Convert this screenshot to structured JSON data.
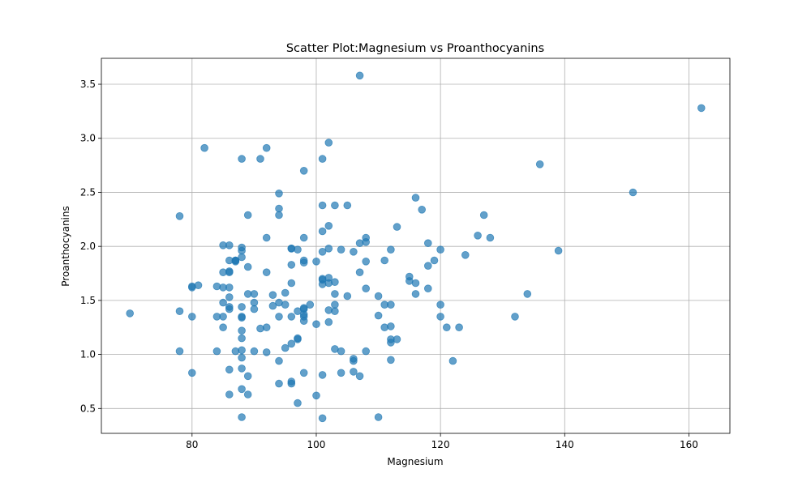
{
  "chart_data": {
    "type": "scatter",
    "title": "Scatter Plot:Magnesium vs Proanthocyanins",
    "xlabel": "Magnesium",
    "ylabel": "Proanthocyanins",
    "xlim": [
      65.4,
      166.6
    ],
    "ylim": [
      0.27,
      3.74
    ],
    "xticks": [
      80,
      100,
      120,
      140,
      160
    ],
    "yticks": [
      0.5,
      1.0,
      1.5,
      2.0,
      2.5,
      3.0,
      3.5
    ],
    "xtick_labels": [
      "80",
      "100",
      "120",
      "140",
      "160"
    ],
    "ytick_labels": [
      "0.5",
      "1.0",
      "1.5",
      "2.0",
      "2.5",
      "3.0",
      "3.5"
    ],
    "grid": true,
    "marker_color": "#1f77b4",
    "marker_alpha": 0.7,
    "x": [
      70,
      78,
      78,
      78,
      80,
      80,
      80,
      80,
      81,
      82,
      84,
      84,
      84,
      85,
      85,
      85,
      85,
      85,
      85,
      86,
      86,
      86,
      86,
      86,
      86,
      86,
      86,
      86,
      86,
      87,
      87,
      87,
      87,
      88,
      88,
      88,
      88,
      88,
      88,
      88,
      88,
      88,
      88,
      88,
      88,
      88,
      88,
      89,
      89,
      89,
      89,
      89,
      90,
      90,
      90,
      90,
      91,
      91,
      92,
      92,
      92,
      92,
      92,
      93,
      93,
      94,
      94,
      94,
      94,
      94,
      94,
      94,
      95,
      95,
      95,
      96,
      96,
      96,
      96,
      96,
      96,
      96,
      96,
      97,
      97,
      97,
      97,
      97,
      98,
      98,
      98,
      98,
      98,
      98,
      98,
      98,
      98,
      98,
      99,
      100,
      100,
      100,
      101,
      101,
      101,
      101,
      101,
      101,
      101,
      101,
      101,
      102,
      102,
      102,
      102,
      102,
      102,
      102,
      103,
      103,
      103,
      103,
      103,
      103,
      104,
      104,
      104,
      105,
      105,
      106,
      106,
      106,
      106,
      107,
      107,
      107,
      107,
      108,
      108,
      108,
      108,
      108,
      110,
      110,
      110,
      111,
      111,
      111,
      112,
      112,
      112,
      112,
      112,
      112,
      113,
      113,
      115,
      115,
      116,
      116,
      116,
      117,
      118,
      118,
      118,
      119,
      120,
      120,
      120,
      121,
      122,
      123,
      124,
      126,
      127,
      128,
      132,
      134,
      136,
      139,
      151,
      162
    ],
    "y": [
      1.38,
      2.28,
      1.4,
      1.03,
      1.63,
      1.62,
      1.35,
      0.83,
      1.64,
      2.91,
      1.63,
      1.35,
      1.03,
      2.01,
      1.76,
      1.62,
      1.48,
      1.35,
      1.25,
      2.01,
      1.87,
      1.77,
      1.76,
      1.62,
      1.53,
      1.44,
      1.42,
      0.86,
      0.63,
      1.87,
      1.87,
      1.86,
      1.03,
      2.81,
      1.99,
      1.96,
      1.9,
      1.44,
      1.35,
      1.34,
      1.22,
      1.15,
      1.04,
      0.97,
      0.87,
      0.42,
      0.68,
      2.29,
      1.81,
      1.56,
      0.8,
      0.63,
      1.56,
      1.48,
      1.42,
      1.03,
      2.81,
      1.24,
      2.91,
      2.08,
      1.76,
      1.25,
      1.02,
      1.55,
      1.45,
      2.49,
      2.35,
      2.29,
      1.35,
      0.94,
      0.73,
      1.48,
      1.57,
      1.46,
      1.06,
      1.98,
      1.98,
      1.83,
      1.66,
      1.35,
      1.1,
      0.75,
      0.73,
      1.97,
      1.4,
      1.15,
      1.14,
      0.55,
      2.7,
      2.08,
      1.87,
      1.85,
      1.43,
      1.37,
      1.35,
      1.31,
      0.83,
      1.42,
      1.46,
      1.86,
      1.28,
      0.62,
      2.81,
      2.38,
      2.14,
      1.95,
      1.7,
      1.69,
      1.65,
      0.81,
      0.41,
      2.96,
      2.19,
      1.98,
      1.71,
      1.66,
      1.41,
      1.3,
      2.38,
      1.67,
      1.46,
      1.4,
      1.05,
      1.56,
      1.97,
      1.03,
      0.83,
      2.38,
      1.54,
      1.95,
      0.96,
      0.94,
      0.84,
      2.03,
      1.76,
      0.8,
      3.58,
      2.08,
      2.04,
      1.86,
      1.61,
      1.03,
      1.54,
      1.36,
      0.42,
      1.87,
      1.46,
      1.25,
      1.97,
      1.46,
      1.26,
      1.14,
      1.11,
      0.95,
      2.18,
      1.14,
      1.72,
      1.68,
      2.45,
      1.66,
      1.56,
      2.34,
      2.03,
      1.82,
      1.61,
      1.87,
      1.97,
      1.46,
      1.35,
      1.25,
      0.94,
      1.25,
      1.92,
      2.1,
      2.29,
      2.08,
      1.35,
      1.56,
      2.76,
      1.96,
      2.5,
      3.28
    ]
  }
}
